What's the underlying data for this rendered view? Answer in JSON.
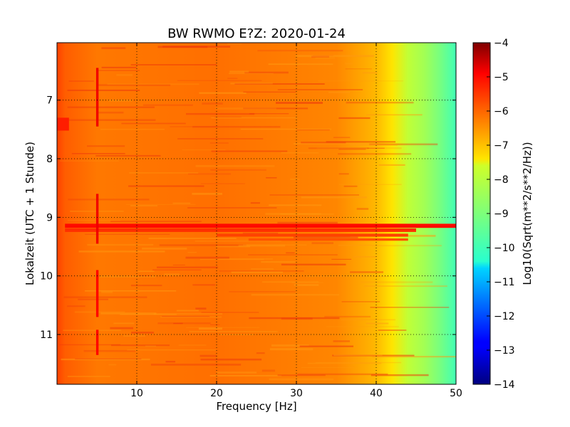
{
  "chart_data": {
    "type": "heatmap",
    "title": "BW RWMO E?Z: 2020-01-24",
    "xlabel": "Frequency [Hz]",
    "ylabel": "Lokalzeit (UTC + 1 Stunde)",
    "xlim": [
      0,
      50
    ],
    "ylim": [
      6.02,
      11.85
    ],
    "y_inverted": true,
    "x_ticks": [
      10,
      20,
      30,
      40,
      50
    ],
    "y_ticks": [
      7,
      8,
      9,
      10,
      11
    ],
    "grid": true,
    "colormap": "jet",
    "colorbar": {
      "label": "Log10(Sqrt(m**2/s**2/Hz))",
      "range": [
        -14,
        -4
      ],
      "ticks": [
        -4,
        -5,
        -6,
        -7,
        -8,
        -9,
        -10,
        -11,
        -12,
        -13,
        -14
      ]
    },
    "frequency_profile": [
      {
        "hz": 0,
        "value": -5.6
      },
      {
        "hz": 1,
        "value": -5.9
      },
      {
        "hz": 5,
        "value": -6.2
      },
      {
        "hz": 20,
        "value": -6.1
      },
      {
        "hz": 35,
        "value": -6.35
      },
      {
        "hz": 40,
        "value": -6.9
      },
      {
        "hz": 42,
        "value": -7.4
      },
      {
        "hz": 44,
        "value": -7.85
      },
      {
        "hz": 46,
        "value": -8.35
      },
      {
        "hz": 48,
        "value": -9.1
      },
      {
        "hz": 50,
        "value": -10.0
      }
    ],
    "events": [
      {
        "time_start": 9.11,
        "time_end": 9.18,
        "hz_start": 1,
        "hz_end": 50,
        "value": -5.0
      },
      {
        "time_start": 9.19,
        "time_end": 9.25,
        "hz_start": 1,
        "hz_end": 45,
        "value": -5.4
      },
      {
        "time_start": 9.28,
        "time_end": 9.33,
        "hz_start": 20,
        "hz_end": 44,
        "value": -5.6
      },
      {
        "time_start": 9.36,
        "time_end": 9.4,
        "hz_start": 24,
        "hz_end": 44,
        "value": -5.8
      },
      {
        "time_start": 7.3,
        "time_end": 7.52,
        "hz_start": 0,
        "hz_end": 1.5,
        "value": -5.2
      },
      {
        "time_start": 6.45,
        "time_end": 7.45,
        "hz_start": 4.9,
        "hz_end": 5.2,
        "value": -4.8
      },
      {
        "time_start": 8.6,
        "time_end": 9.45,
        "hz_start": 4.9,
        "hz_end": 5.2,
        "value": -4.8
      },
      {
        "time_start": 9.9,
        "time_end": 10.7,
        "hz_start": 4.9,
        "hz_end": 5.2,
        "value": -4.9
      },
      {
        "time_start": 10.92,
        "time_end": 11.35,
        "hz_start": 4.9,
        "hz_end": 5.2,
        "value": -4.9
      }
    ]
  }
}
